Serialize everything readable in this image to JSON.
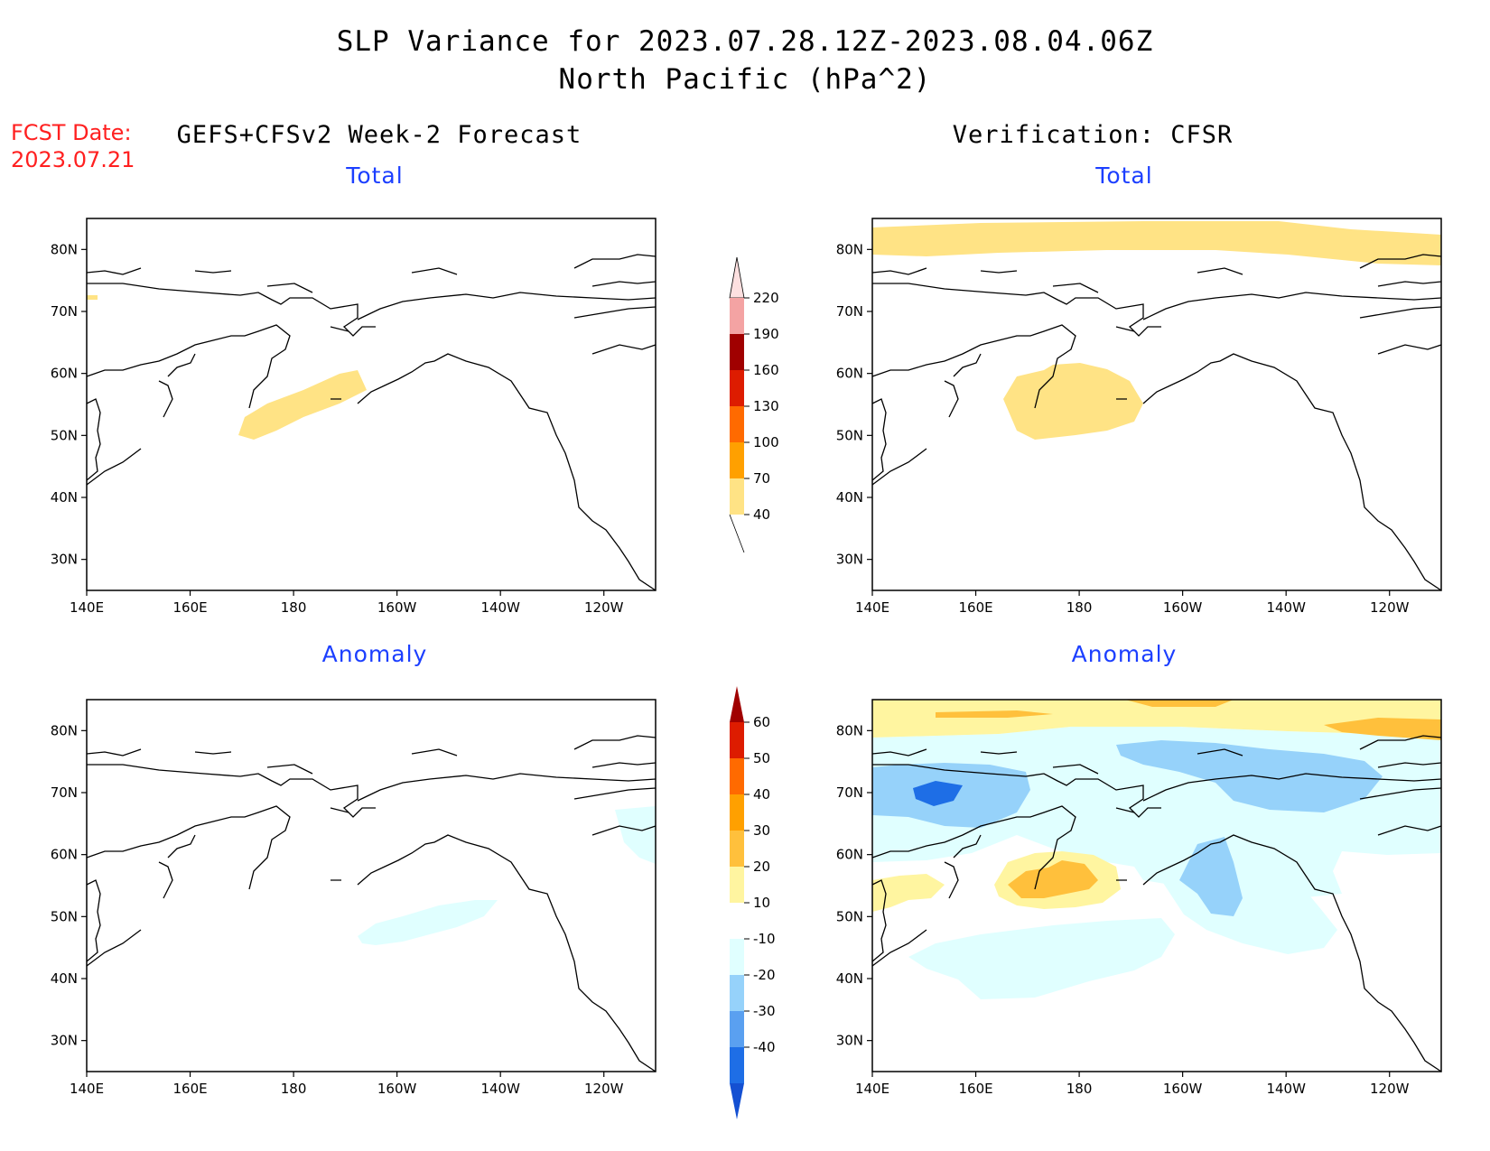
{
  "title": {
    "line1": "SLP Variance for 2023.07.28.12Z-2023.08.04.06Z",
    "line2": "North Pacific (hPa^2)"
  },
  "fcst_date": {
    "label": "FCST Date:",
    "value": "2023.07.21"
  },
  "left_header": "GEFS+CFSv2 Week-2 Forecast",
  "right_header": "Verification: CFSR",
  "panels": [
    {
      "title": "Total"
    },
    {
      "title": "Total"
    },
    {
      "title": "Anomaly"
    },
    {
      "title": "Anomaly"
    }
  ],
  "map_axes": {
    "lat_labels": [
      "80N",
      "70N",
      "60N",
      "50N",
      "40N",
      "30N"
    ],
    "lon_labels": [
      "140E",
      "160E",
      "180",
      "160W",
      "140W",
      "120W"
    ],
    "lat_range": [
      25,
      85
    ],
    "lon_range": [
      140,
      250
    ]
  },
  "colorbar_total": {
    "labels": [
      "220",
      "190",
      "160",
      "130",
      "100",
      "70",
      "40"
    ],
    "colors": [
      "#fde0e0",
      "#f4a3a3",
      "#a00000",
      "#dd1c00",
      "#ff6a00",
      "#ffa000",
      "#ffe385"
    ]
  },
  "colorbar_anomaly": {
    "labels": [
      "60",
      "50",
      "40",
      "30",
      "20",
      "10",
      "-10",
      "-20",
      "-30",
      "-40"
    ],
    "colors": [
      "#a00000",
      "#dd1c00",
      "#ff6a00",
      "#ffa000",
      "#ffc03c",
      "#fff5a0",
      "#ffffff",
      "#e0ffff",
      "#96d2fa",
      "#5aa0f0",
      "#1e6ee6",
      "#1450d2"
    ]
  },
  "shading_colors": {
    "pos1": "#ffe385",
    "pos_light": "#fff5a0",
    "pos2": "#ffc03c",
    "pos3": "#ffa000",
    "neg1": "#e0ffff",
    "neg2": "#96d2fa",
    "neg3": "#5aa0f0",
    "neg4": "#1e6ee6"
  }
}
